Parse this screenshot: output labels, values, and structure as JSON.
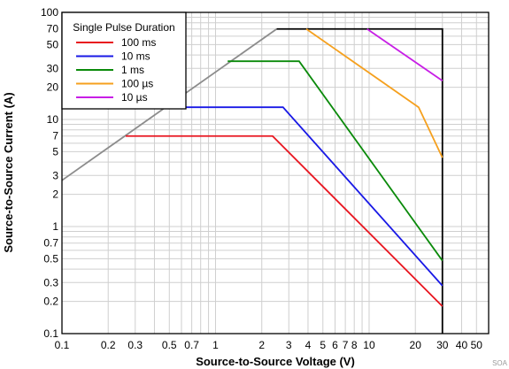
{
  "chart_data": {
    "type": "line",
    "xlabel": "Source-to-Source Voltage (V)",
    "ylabel": "Source-to-Source Current (A)",
    "xscale": "log",
    "yscale": "log",
    "xlim": [
      0.1,
      60
    ],
    "ylim": [
      0.1,
      100
    ],
    "grid": true,
    "legend_title": "Single Pulse Duration",
    "legend_position": "top-left",
    "x_ticks": [
      {
        "value": 0.1,
        "label": "0.1"
      },
      {
        "value": 0.2,
        "label": "0.2"
      },
      {
        "value": 0.3,
        "label": "0.3"
      },
      {
        "value": 0.5,
        "label": "0.5"
      },
      {
        "value": 0.7,
        "label": "0.7"
      },
      {
        "value": 1,
        "label": "1"
      },
      {
        "value": 2,
        "label": "2"
      },
      {
        "value": 3,
        "label": "3"
      },
      {
        "value": 4,
        "label": "4"
      },
      {
        "value": 5,
        "label": "5"
      },
      {
        "value": 6,
        "label": "6"
      },
      {
        "value": 7,
        "label": "7"
      },
      {
        "value": 8,
        "label": "8"
      },
      {
        "value": 10,
        "label": "10"
      },
      {
        "value": 20,
        "label": "20"
      },
      {
        "value": 30,
        "label": "30"
      },
      {
        "value": 40,
        "label": "40"
      },
      {
        "value": 50,
        "label": "50"
      }
    ],
    "y_ticks": [
      {
        "value": 0.1,
        "label": "0.1"
      },
      {
        "value": 0.2,
        "label": "0.2"
      },
      {
        "value": 0.3,
        "label": "0.3"
      },
      {
        "value": 0.5,
        "label": "0.5"
      },
      {
        "value": 0.7,
        "label": "0.7"
      },
      {
        "value": 1,
        "label": "1"
      },
      {
        "value": 2,
        "label": "2"
      },
      {
        "value": 3,
        "label": "3"
      },
      {
        "value": 5,
        "label": "5"
      },
      {
        "value": 7,
        "label": "7"
      },
      {
        "value": 10,
        "label": "10"
      },
      {
        "value": 20,
        "label": "20"
      },
      {
        "value": 30,
        "label": "30"
      },
      {
        "value": 50,
        "label": "50"
      },
      {
        "value": 70,
        "label": "70"
      },
      {
        "value": 100,
        "label": "100"
      }
    ],
    "series": [
      {
        "name": "100 ms",
        "color": "#e8141e",
        "points": [
          [
            0.26,
            7
          ],
          [
            2.35,
            7
          ],
          [
            30,
            0.18
          ]
        ]
      },
      {
        "name": "10 ms",
        "color": "#1919e6",
        "points": [
          [
            0.42,
            13
          ],
          [
            2.75,
            13
          ],
          [
            30,
            0.28
          ]
        ]
      },
      {
        "name": "1 ms",
        "color": "#0a8a0a",
        "points": [
          [
            1.2,
            35
          ],
          [
            3.5,
            35
          ],
          [
            30,
            0.48
          ]
        ]
      },
      {
        "name": "100 µs",
        "color": "#f5a01e",
        "points": [
          [
            3.9,
            70
          ],
          [
            21,
            13
          ],
          [
            30,
            4.4
          ]
        ]
      },
      {
        "name": "10 µs",
        "color": "#c81ee6",
        "points": [
          [
            9.7,
            70
          ],
          [
            30,
            23
          ]
        ]
      }
    ],
    "reference_lines": [
      {
        "color": "#8c8c8c",
        "points": [
          [
            0.1,
            2.7
          ],
          [
            2.5,
            70
          ]
        ]
      },
      {
        "color": "#000000",
        "points": [
          [
            2.5,
            70
          ],
          [
            30,
            70
          ],
          [
            30,
            0.1
          ]
        ]
      }
    ],
    "corner_label": "SOA"
  }
}
